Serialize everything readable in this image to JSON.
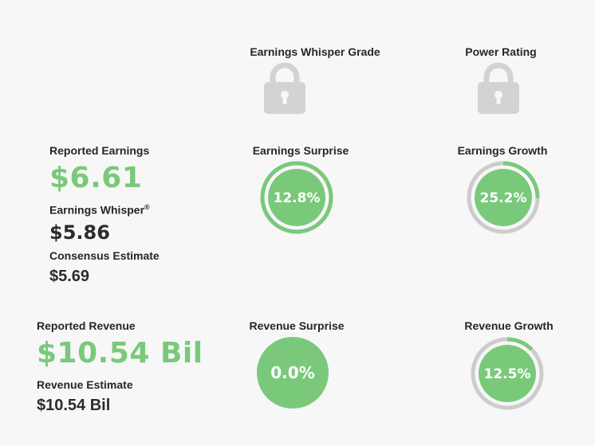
{
  "grade": {
    "label": "Earnings Whisper Grade",
    "icon": "lock-icon"
  },
  "power": {
    "label": "Power Rating",
    "icon": "lock-icon"
  },
  "earnings": {
    "reported_label": "Reported Earnings",
    "reported_value": "$6.61",
    "whisper_label": "Earnings Whisper",
    "whisper_mark": "®",
    "whisper_value": "$5.86",
    "consensus_label": "Consensus Estimate",
    "consensus_value": "$5.69"
  },
  "earnings_surprise": {
    "label": "Earnings Surprise",
    "text": "12.8%",
    "fraction": 1.0
  },
  "earnings_growth": {
    "label": "Earnings Growth",
    "text": "25.2%",
    "fraction": 0.252
  },
  "revenue": {
    "reported_label": "Reported Revenue",
    "reported_value": "$10.54 Bil",
    "estimate_label": "Revenue Estimate",
    "estimate_value": "$10.54 Bil"
  },
  "revenue_surprise": {
    "label": "Revenue Surprise",
    "text": "0.0%",
    "fraction": 0.0
  },
  "revenue_growth": {
    "label": "Revenue Growth",
    "text": "12.5%",
    "fraction": 0.125
  },
  "colors": {
    "green": "#7ac97b",
    "gray": "#cccccc",
    "lock": "#d3d3d3"
  }
}
